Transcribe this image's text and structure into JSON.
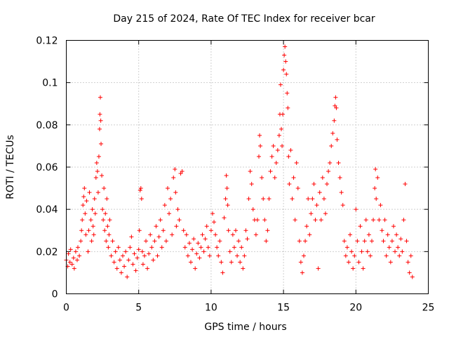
{
  "chart_data": {
    "type": "scatter",
    "title": "Day 215 of 2024, Rate Of TEC Index for receiver bcar",
    "xlabel": "GPS time / hours",
    "ylabel": "ROTI / TECUs",
    "xlim": [
      0,
      25
    ],
    "ylim": [
      0,
      0.12
    ],
    "x_ticks": [
      "0",
      "5",
      "10",
      "15",
      "20",
      "25"
    ],
    "y_ticks": [
      "0",
      "0.02",
      "0.04",
      "0.06",
      "0.08",
      "0.1",
      "0.12"
    ],
    "grid": true,
    "marker": "+",
    "color": "#ff0000",
    "series": [
      {
        "points": [
          [
            0.0,
            0.016
          ],
          [
            0.1,
            0.013
          ],
          [
            0.15,
            0.019
          ],
          [
            0.25,
            0.015
          ],
          [
            0.3,
            0.021
          ],
          [
            0.4,
            0.014
          ],
          [
            0.5,
            0.017
          ],
          [
            0.55,
            0.012
          ],
          [
            0.65,
            0.02
          ],
          [
            0.75,
            0.016
          ],
          [
            0.8,
            0.022
          ],
          [
            0.9,
            0.018
          ],
          [
            1.0,
            0.025
          ],
          [
            1.05,
            0.03
          ],
          [
            1.1,
            0.035
          ],
          [
            1.15,
            0.042
          ],
          [
            1.2,
            0.046
          ],
          [
            1.25,
            0.05
          ],
          [
            1.3,
            0.038
          ],
          [
            1.35,
            0.028
          ],
          [
            1.4,
            0.044
          ],
          [
            1.5,
            0.02
          ],
          [
            1.55,
            0.03
          ],
          [
            1.6,
            0.048
          ],
          [
            1.7,
            0.035
          ],
          [
            1.75,
            0.025
          ],
          [
            1.8,
            0.04
          ],
          [
            1.85,
            0.032
          ],
          [
            1.9,
            0.028
          ],
          [
            1.95,
            0.045
          ],
          [
            2.0,
            0.038
          ],
          [
            2.05,
            0.055
          ],
          [
            2.1,
            0.062
          ],
          [
            2.15,
            0.058
          ],
          [
            2.2,
            0.048
          ],
          [
            2.25,
            0.065
          ],
          [
            2.3,
            0.078
          ],
          [
            2.32,
            0.085
          ],
          [
            2.35,
            0.093
          ],
          [
            2.38,
            0.082
          ],
          [
            2.4,
            0.071
          ],
          [
            2.45,
            0.056
          ],
          [
            2.5,
            0.04
          ],
          [
            2.55,
            0.035
          ],
          [
            2.6,
            0.05
          ],
          [
            2.65,
            0.03
          ],
          [
            2.7,
            0.038
          ],
          [
            2.75,
            0.025
          ],
          [
            2.8,
            0.045
          ],
          [
            2.85,
            0.032
          ],
          [
            2.9,
            0.022
          ],
          [
            2.95,
            0.028
          ],
          [
            3.0,
            0.035
          ],
          [
            3.1,
            0.018
          ],
          [
            3.2,
            0.025
          ],
          [
            3.3,
            0.015
          ],
          [
            3.4,
            0.02
          ],
          [
            3.5,
            0.012
          ],
          [
            3.6,
            0.022
          ],
          [
            3.7,
            0.016
          ],
          [
            3.8,
            0.01
          ],
          [
            3.9,
            0.018
          ],
          [
            4.0,
            0.013
          ],
          [
            4.1,
            0.02
          ],
          [
            4.2,
            0.008
          ],
          [
            4.3,
            0.016
          ],
          [
            4.4,
            0.022
          ],
          [
            4.5,
            0.027
          ],
          [
            4.6,
            0.014
          ],
          [
            4.7,
            0.019
          ],
          [
            4.8,
            0.011
          ],
          [
            4.9,
            0.017
          ],
          [
            5.0,
            0.021
          ],
          [
            5.05,
            0.03
          ],
          [
            5.1,
            0.049
          ],
          [
            5.15,
            0.05
          ],
          [
            5.2,
            0.045
          ],
          [
            5.25,
            0.02
          ],
          [
            5.3,
            0.014
          ],
          [
            5.4,
            0.018
          ],
          [
            5.5,
            0.025
          ],
          [
            5.6,
            0.012
          ],
          [
            5.7,
            0.019
          ],
          [
            5.8,
            0.028
          ],
          [
            5.9,
            0.022
          ],
          [
            6.0,
            0.016
          ],
          [
            6.1,
            0.025
          ],
          [
            6.2,
            0.032
          ],
          [
            6.3,
            0.018
          ],
          [
            6.4,
            0.027
          ],
          [
            6.5,
            0.035
          ],
          [
            6.6,
            0.022
          ],
          [
            6.7,
            0.03
          ],
          [
            6.8,
            0.042
          ],
          [
            6.9,
            0.025
          ],
          [
            7.0,
            0.05
          ],
          [
            7.1,
            0.038
          ],
          [
            7.2,
            0.045
          ],
          [
            7.3,
            0.028
          ],
          [
            7.4,
            0.055
          ],
          [
            7.5,
            0.059
          ],
          [
            7.55,
            0.048
          ],
          [
            7.6,
            0.032
          ],
          [
            7.7,
            0.04
          ],
          [
            7.8,
            0.035
          ],
          [
            7.9,
            0.057
          ],
          [
            8.0,
            0.058
          ],
          [
            8.1,
            0.03
          ],
          [
            8.2,
            0.022
          ],
          [
            8.3,
            0.028
          ],
          [
            8.4,
            0.018
          ],
          [
            8.5,
            0.024
          ],
          [
            8.6,
            0.015
          ],
          [
            8.7,
            0.021
          ],
          [
            8.8,
            0.026
          ],
          [
            8.9,
            0.012
          ],
          [
            9.0,
            0.019
          ],
          [
            9.1,
            0.024
          ],
          [
            9.2,
            0.017
          ],
          [
            9.3,
            0.022
          ],
          [
            9.4,
            0.028
          ],
          [
            9.5,
            0.02
          ],
          [
            9.6,
            0.026
          ],
          [
            9.7,
            0.032
          ],
          [
            9.8,
            0.022
          ],
          [
            9.9,
            0.018
          ],
          [
            10.0,
            0.03
          ],
          [
            10.1,
            0.038
          ],
          [
            10.2,
            0.034
          ],
          [
            10.3,
            0.028
          ],
          [
            10.4,
            0.022
          ],
          [
            10.5,
            0.018
          ],
          [
            10.6,
            0.025
          ],
          [
            10.7,
            0.015
          ],
          [
            10.8,
            0.01
          ],
          [
            10.9,
            0.036
          ],
          [
            11.0,
            0.045
          ],
          [
            11.05,
            0.056
          ],
          [
            11.1,
            0.05
          ],
          [
            11.15,
            0.042
          ],
          [
            11.2,
            0.03
          ],
          [
            11.3,
            0.02
          ],
          [
            11.4,
            0.015
          ],
          [
            11.5,
            0.028
          ],
          [
            11.6,
            0.022
          ],
          [
            11.7,
            0.03
          ],
          [
            11.8,
            0.018
          ],
          [
            11.9,
            0.025
          ],
          [
            12.0,
            0.015
          ],
          [
            12.1,
            0.022
          ],
          [
            12.2,
            0.012
          ],
          [
            12.3,
            0.018
          ],
          [
            12.4,
            0.03
          ],
          [
            12.5,
            0.026
          ],
          [
            12.6,
            0.045
          ],
          [
            12.7,
            0.058
          ],
          [
            12.8,
            0.052
          ],
          [
            12.9,
            0.04
          ],
          [
            13.0,
            0.035
          ],
          [
            13.1,
            0.028
          ],
          [
            13.2,
            0.035
          ],
          [
            13.3,
            0.065
          ],
          [
            13.35,
            0.075
          ],
          [
            13.4,
            0.07
          ],
          [
            13.5,
            0.055
          ],
          [
            13.6,
            0.045
          ],
          [
            13.7,
            0.035
          ],
          [
            13.8,
            0.025
          ],
          [
            13.9,
            0.03
          ],
          [
            14.0,
            0.045
          ],
          [
            14.1,
            0.058
          ],
          [
            14.2,
            0.065
          ],
          [
            14.3,
            0.07
          ],
          [
            14.4,
            0.055
          ],
          [
            14.5,
            0.062
          ],
          [
            14.6,
            0.068
          ],
          [
            14.7,
            0.075
          ],
          [
            14.75,
            0.085
          ],
          [
            14.8,
            0.099
          ],
          [
            14.85,
            0.078
          ],
          [
            14.9,
            0.07
          ],
          [
            14.95,
            0.085
          ],
          [
            15.0,
            0.106
          ],
          [
            15.05,
            0.113
          ],
          [
            15.1,
            0.117
          ],
          [
            15.15,
            0.11
          ],
          [
            15.2,
            0.104
          ],
          [
            15.25,
            0.095
          ],
          [
            15.3,
            0.088
          ],
          [
            15.35,
            0.065
          ],
          [
            15.4,
            0.052
          ],
          [
            15.5,
            0.068
          ],
          [
            15.6,
            0.045
          ],
          [
            15.7,
            0.055
          ],
          [
            15.8,
            0.035
          ],
          [
            15.9,
            0.062
          ],
          [
            16.0,
            0.05
          ],
          [
            16.1,
            0.025
          ],
          [
            16.2,
            0.015
          ],
          [
            16.3,
            0.01
          ],
          [
            16.4,
            0.018
          ],
          [
            16.5,
            0.025
          ],
          [
            16.6,
            0.032
          ],
          [
            16.7,
            0.045
          ],
          [
            16.8,
            0.028
          ],
          [
            16.9,
            0.038
          ],
          [
            17.0,
            0.045
          ],
          [
            17.1,
            0.052
          ],
          [
            17.2,
            0.035
          ],
          [
            17.3,
            0.042
          ],
          [
            17.4,
            0.012
          ],
          [
            17.5,
            0.048
          ],
          [
            17.6,
            0.035
          ],
          [
            17.7,
            0.055
          ],
          [
            17.8,
            0.045
          ],
          [
            17.9,
            0.038
          ],
          [
            18.0,
            0.052
          ],
          [
            18.1,
            0.058
          ],
          [
            18.2,
            0.062
          ],
          [
            18.3,
            0.07
          ],
          [
            18.4,
            0.076
          ],
          [
            18.5,
            0.082
          ],
          [
            18.55,
            0.089
          ],
          [
            18.6,
            0.093
          ],
          [
            18.65,
            0.088
          ],
          [
            18.7,
            0.073
          ],
          [
            18.8,
            0.062
          ],
          [
            18.9,
            0.055
          ],
          [
            19.0,
            0.048
          ],
          [
            19.1,
            0.042
          ],
          [
            19.2,
            0.025
          ],
          [
            19.3,
            0.018
          ],
          [
            19.4,
            0.022
          ],
          [
            19.5,
            0.015
          ],
          [
            19.6,
            0.028
          ],
          [
            19.7,
            0.02
          ],
          [
            19.8,
            0.012
          ],
          [
            19.9,
            0.018
          ],
          [
            20.0,
            0.04
          ],
          [
            20.1,
            0.025
          ],
          [
            20.2,
            0.015
          ],
          [
            20.3,
            0.032
          ],
          [
            20.4,
            0.02
          ],
          [
            20.5,
            0.012
          ],
          [
            20.6,
            0.025
          ],
          [
            20.7,
            0.035
          ],
          [
            20.8,
            0.02
          ],
          [
            20.9,
            0.028
          ],
          [
            21.0,
            0.018
          ],
          [
            21.1,
            0.025
          ],
          [
            21.2,
            0.035
          ],
          [
            21.3,
            0.05
          ],
          [
            21.35,
            0.059
          ],
          [
            21.4,
            0.045
          ],
          [
            21.5,
            0.055
          ],
          [
            21.6,
            0.035
          ],
          [
            21.7,
            0.042
          ],
          [
            21.8,
            0.03
          ],
          [
            21.9,
            0.025
          ],
          [
            22.0,
            0.035
          ],
          [
            22.1,
            0.018
          ],
          [
            22.2,
            0.028
          ],
          [
            22.3,
            0.022
          ],
          [
            22.4,
            0.015
          ],
          [
            22.5,
            0.025
          ],
          [
            22.6,
            0.032
          ],
          [
            22.7,
            0.02
          ],
          [
            22.8,
            0.028
          ],
          [
            22.9,
            0.022
          ],
          [
            23.0,
            0.018
          ],
          [
            23.1,
            0.026
          ],
          [
            23.2,
            0.02
          ],
          [
            23.3,
            0.035
          ],
          [
            23.4,
            0.052
          ],
          [
            23.5,
            0.025
          ],
          [
            23.6,
            0.015
          ],
          [
            23.7,
            0.01
          ],
          [
            23.8,
            0.018
          ],
          [
            23.9,
            0.008
          ]
        ]
      }
    ]
  }
}
